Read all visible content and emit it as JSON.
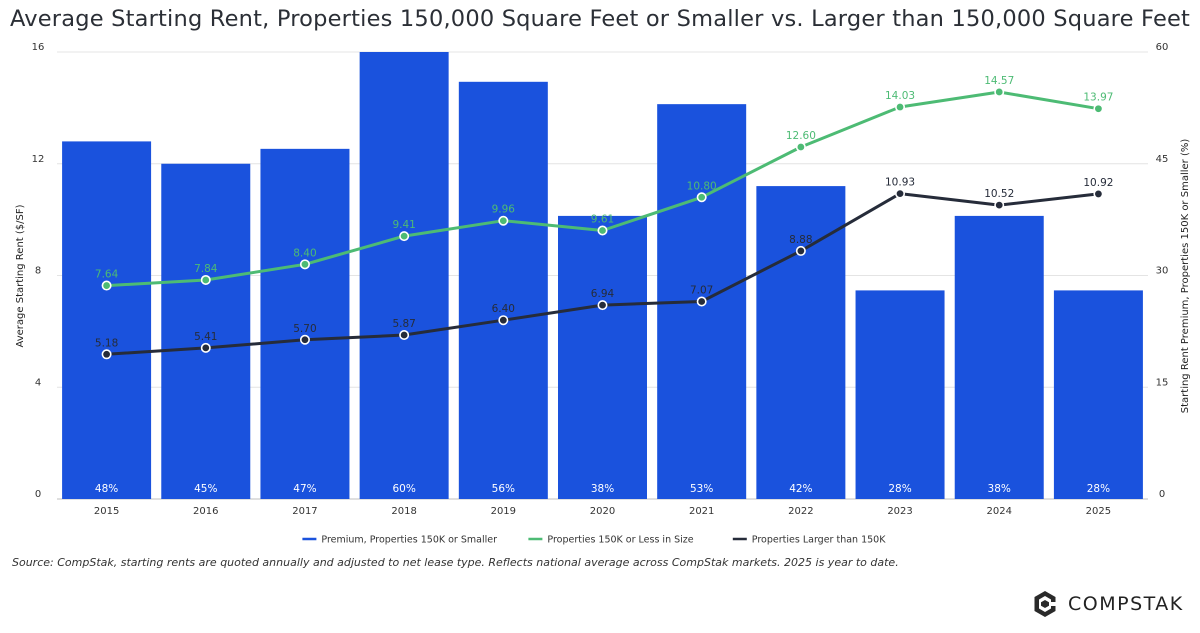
{
  "header": {
    "title": "Average Starting Rent, Properties 150,000 Square Feet or Smaller vs. Larger than 150,000 Square Feet"
  },
  "chart_data": {
    "type": "bar",
    "categories": [
      "2015",
      "2016",
      "2017",
      "2018",
      "2019",
      "2020",
      "2021",
      "2022",
      "2023",
      "2024",
      "2025"
    ],
    "bar_series": {
      "name": "Premium, Properties 150K or Smaller",
      "axis": "right",
      "values": [
        48,
        45,
        47,
        60,
        56,
        38,
        53,
        42,
        28,
        38,
        28
      ],
      "labels": [
        "48%",
        "45%",
        "47%",
        "60%",
        "56%",
        "38%",
        "53%",
        "42%",
        "28%",
        "38%",
        "28%"
      ],
      "color": "#1a52dd"
    },
    "line_series": [
      {
        "name": "Properties 150K or Less in Size",
        "axis": "left",
        "values": [
          7.64,
          7.84,
          8.4,
          9.41,
          9.96,
          9.61,
          10.8,
          12.6,
          14.03,
          14.57,
          13.97
        ],
        "labels": [
          "7.64",
          "7.84",
          "8.40",
          "9.41",
          "9.96",
          "9.61",
          "10.80",
          "12.60",
          "14.03",
          "14.57",
          "13.97"
        ],
        "color": "#4dbb74"
      },
      {
        "name": "Properties Larger than 150K",
        "axis": "left",
        "values": [
          5.18,
          5.41,
          5.7,
          5.87,
          6.4,
          6.94,
          7.07,
          8.88,
          10.93,
          10.52,
          10.92
        ],
        "labels": [
          "5.18",
          "5.41",
          "5.70",
          "5.87",
          "6.40",
          "6.94",
          "7.07",
          "8.88",
          "10.93",
          "10.52",
          "10.92"
        ],
        "color": "#262c3a"
      }
    ],
    "left_axis": {
      "label": "Average Starting Rent ($/SF)",
      "min": 0,
      "max": 16,
      "ticks": [
        0,
        4,
        8,
        12,
        16
      ],
      "tick_labels": [
        "0",
        "4",
        "8",
        "12",
        "16"
      ]
    },
    "right_axis": {
      "label": "Starting Rent Premium, Properties 150K or Smaller (%)",
      "min": 0,
      "max": 60,
      "ticks": [
        0,
        15,
        30,
        45,
        60
      ],
      "tick_labels": [
        "0",
        "15",
        "30",
        "45",
        "60"
      ]
    },
    "legend": [
      {
        "name": "Premium, Properties 150K or Smaller",
        "color": "#1a52dd"
      },
      {
        "name": "Properties 150K or Less in Size",
        "color": "#4dbb74"
      },
      {
        "name": "Properties Larger than 150K",
        "color": "#262c3a"
      }
    ],
    "legend_position": "bottom-center",
    "grid": true
  },
  "footer": {
    "source": "Source: CompStak, starting rents are quoted annually and adjusted to net lease type. Reflects national average across CompStak markets. 2025 is year to date.",
    "brand": "COMPSTAK"
  }
}
